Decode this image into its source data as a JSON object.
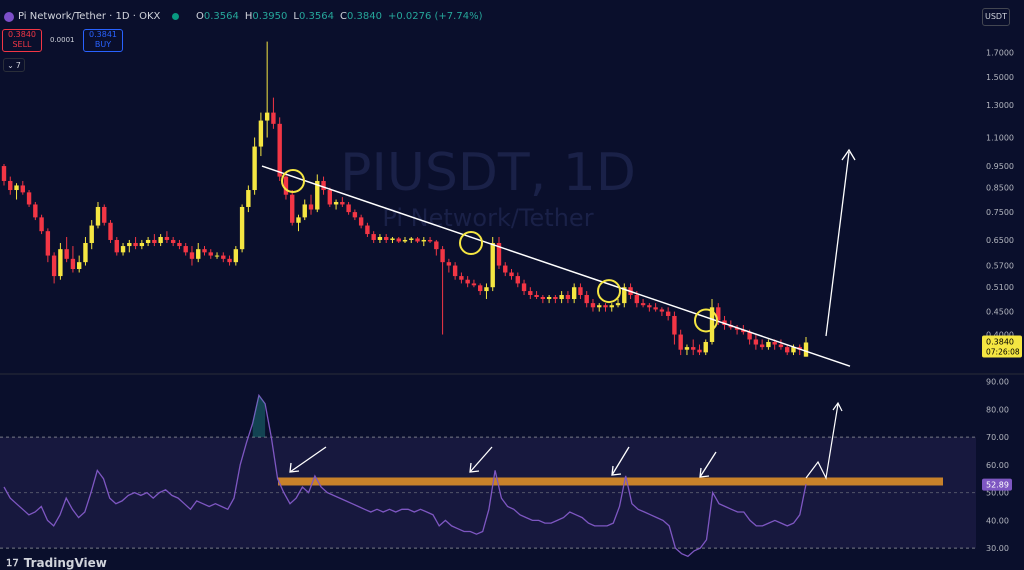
{
  "header": {
    "symbol_title": "Pi Network/Tether · 1D · OKX",
    "ohlc": [
      {
        "k": "O",
        "v": "0.3564"
      },
      {
        "k": "H",
        "v": "0.3950"
      },
      {
        "k": "L",
        "v": "0.3564"
      },
      {
        "k": "C",
        "v": "0.3840"
      },
      {
        "k": "",
        "v": "+0.0276 (+7.74%)"
      }
    ],
    "currency": "USDT"
  },
  "trade": {
    "sell_price": "0.3840",
    "sell_label": "SELL",
    "spread": "0.0001",
    "buy_price": "0.3841",
    "buy_label": "BUY"
  },
  "indicators_toggle": {
    "count": "7"
  },
  "branding": {
    "name": "TradingView"
  },
  "colors": {
    "background": "#0a0f2c",
    "up_candle": "#f5e642",
    "down_candle": "#f23645",
    "trendline": "#ffffff",
    "highlight_circle": "#f5e642",
    "rsi_line": "#7e57c2",
    "resistance_band": "#c8822a",
    "price_label_bg": "#f5e642"
  },
  "chart_data": [
    {
      "type": "candlestick",
      "watermark_symbol": "PIUSDT, 1D",
      "watermark_name": "Pi Network/Tether",
      "y_scale": "log",
      "ylim": [
        0.33,
        1.95
      ],
      "y_ticks": [
        "1.7000",
        "1.5000",
        "1.3000",
        "1.1000",
        "0.9500",
        "0.8500",
        "0.7500",
        "0.6500",
        "0.5700",
        "0.5100",
        "0.4500",
        "0.4000"
      ],
      "last_price": "0.3840",
      "countdown": "07:26:08",
      "candles_ohlc": [
        [
          0.95,
          0.96,
          0.86,
          0.88
        ],
        [
          0.88,
          0.9,
          0.82,
          0.84
        ],
        [
          0.84,
          0.87,
          0.8,
          0.86
        ],
        [
          0.86,
          0.88,
          0.82,
          0.83
        ],
        [
          0.83,
          0.84,
          0.77,
          0.78
        ],
        [
          0.78,
          0.79,
          0.72,
          0.73
        ],
        [
          0.73,
          0.74,
          0.67,
          0.68
        ],
        [
          0.68,
          0.69,
          0.58,
          0.6
        ],
        [
          0.6,
          0.61,
          0.52,
          0.54
        ],
        [
          0.54,
          0.64,
          0.53,
          0.62
        ],
        [
          0.62,
          0.66,
          0.58,
          0.59
        ],
        [
          0.59,
          0.63,
          0.55,
          0.56
        ],
        [
          0.56,
          0.6,
          0.55,
          0.58
        ],
        [
          0.58,
          0.66,
          0.57,
          0.64
        ],
        [
          0.64,
          0.72,
          0.62,
          0.7
        ],
        [
          0.7,
          0.79,
          0.69,
          0.77
        ],
        [
          0.77,
          0.78,
          0.7,
          0.71
        ],
        [
          0.71,
          0.72,
          0.64,
          0.65
        ],
        [
          0.65,
          0.66,
          0.6,
          0.61
        ],
        [
          0.61,
          0.64,
          0.6,
          0.63
        ],
        [
          0.63,
          0.65,
          0.61,
          0.64
        ],
        [
          0.64,
          0.66,
          0.62,
          0.63
        ],
        [
          0.63,
          0.65,
          0.62,
          0.64
        ],
        [
          0.64,
          0.66,
          0.63,
          0.65
        ],
        [
          0.65,
          0.67,
          0.63,
          0.64
        ],
        [
          0.64,
          0.67,
          0.63,
          0.66
        ],
        [
          0.66,
          0.68,
          0.64,
          0.65
        ],
        [
          0.65,
          0.66,
          0.63,
          0.64
        ],
        [
          0.64,
          0.65,
          0.62,
          0.63
        ],
        [
          0.63,
          0.64,
          0.6,
          0.61
        ],
        [
          0.61,
          0.63,
          0.57,
          0.59
        ],
        [
          0.59,
          0.64,
          0.58,
          0.62
        ],
        [
          0.62,
          0.63,
          0.6,
          0.61
        ],
        [
          0.61,
          0.62,
          0.59,
          0.6
        ],
        [
          0.6,
          0.61,
          0.59,
          0.6
        ],
        [
          0.6,
          0.61,
          0.58,
          0.59
        ],
        [
          0.59,
          0.6,
          0.57,
          0.58
        ],
        [
          0.58,
          0.63,
          0.57,
          0.62
        ],
        [
          0.62,
          0.78,
          0.61,
          0.77
        ],
        [
          0.77,
          0.86,
          0.75,
          0.84
        ],
        [
          0.84,
          1.1,
          0.82,
          1.05
        ],
        [
          1.05,
          1.25,
          1.0,
          1.2
        ],
        [
          1.2,
          1.8,
          1.1,
          1.25
        ],
        [
          1.25,
          1.35,
          1.15,
          1.18
        ],
        [
          1.18,
          1.22,
          0.88,
          0.9
        ],
        [
          0.9,
          0.92,
          0.8,
          0.82
        ],
        [
          0.82,
          0.84,
          0.7,
          0.71
        ],
        [
          0.71,
          0.74,
          0.68,
          0.73
        ],
        [
          0.73,
          0.8,
          0.72,
          0.78
        ],
        [
          0.78,
          0.82,
          0.74,
          0.76
        ],
        [
          0.76,
          0.91,
          0.75,
          0.88
        ],
        [
          0.88,
          0.9,
          0.82,
          0.84
        ],
        [
          0.84,
          0.85,
          0.77,
          0.78
        ],
        [
          0.78,
          0.8,
          0.76,
          0.79
        ],
        [
          0.79,
          0.81,
          0.77,
          0.78
        ],
        [
          0.78,
          0.79,
          0.74,
          0.75
        ],
        [
          0.75,
          0.76,
          0.72,
          0.73
        ],
        [
          0.73,
          0.74,
          0.69,
          0.7
        ],
        [
          0.7,
          0.71,
          0.66,
          0.67
        ],
        [
          0.67,
          0.68,
          0.64,
          0.65
        ],
        [
          0.65,
          0.67,
          0.64,
          0.66
        ],
        [
          0.66,
          0.67,
          0.64,
          0.65
        ],
        [
          0.65,
          0.66,
          0.64,
          0.655
        ],
        [
          0.655,
          0.66,
          0.64,
          0.645
        ],
        [
          0.645,
          0.66,
          0.64,
          0.65
        ],
        [
          0.65,
          0.66,
          0.64,
          0.655
        ],
        [
          0.655,
          0.66,
          0.64,
          0.645
        ],
        [
          0.645,
          0.66,
          0.63,
          0.65
        ],
        [
          0.65,
          0.66,
          0.64,
          0.645
        ],
        [
          0.645,
          0.65,
          0.6,
          0.62
        ],
        [
          0.62,
          0.63,
          0.4,
          0.58
        ],
        [
          0.58,
          0.59,
          0.55,
          0.57
        ],
        [
          0.57,
          0.58,
          0.53,
          0.54
        ],
        [
          0.54,
          0.55,
          0.52,
          0.53
        ],
        [
          0.53,
          0.54,
          0.51,
          0.52
        ],
        [
          0.52,
          0.53,
          0.51,
          0.515
        ],
        [
          0.515,
          0.52,
          0.49,
          0.5
        ],
        [
          0.5,
          0.52,
          0.48,
          0.51
        ],
        [
          0.51,
          0.66,
          0.5,
          0.64
        ],
        [
          0.64,
          0.66,
          0.56,
          0.57
        ],
        [
          0.57,
          0.58,
          0.54,
          0.55
        ],
        [
          0.55,
          0.56,
          0.53,
          0.54
        ],
        [
          0.54,
          0.55,
          0.51,
          0.52
        ],
        [
          0.52,
          0.53,
          0.49,
          0.5
        ],
        [
          0.5,
          0.51,
          0.48,
          0.49
        ],
        [
          0.49,
          0.5,
          0.48,
          0.485
        ],
        [
          0.485,
          0.49,
          0.47,
          0.48
        ],
        [
          0.48,
          0.49,
          0.47,
          0.485
        ],
        [
          0.485,
          0.49,
          0.47,
          0.48
        ],
        [
          0.48,
          0.5,
          0.47,
          0.49
        ],
        [
          0.49,
          0.5,
          0.47,
          0.48
        ],
        [
          0.48,
          0.52,
          0.47,
          0.51
        ],
        [
          0.51,
          0.52,
          0.48,
          0.49
        ],
        [
          0.49,
          0.5,
          0.46,
          0.47
        ],
        [
          0.47,
          0.48,
          0.45,
          0.46
        ],
        [
          0.46,
          0.47,
          0.45,
          0.465
        ],
        [
          0.465,
          0.47,
          0.45,
          0.46
        ],
        [
          0.46,
          0.47,
          0.45,
          0.465
        ],
        [
          0.465,
          0.48,
          0.46,
          0.47
        ],
        [
          0.47,
          0.52,
          0.46,
          0.51
        ],
        [
          0.51,
          0.52,
          0.48,
          0.49
        ],
        [
          0.49,
          0.5,
          0.46,
          0.47
        ],
        [
          0.47,
          0.48,
          0.46,
          0.465
        ],
        [
          0.465,
          0.47,
          0.45,
          0.46
        ],
        [
          0.46,
          0.47,
          0.45,
          0.455
        ],
        [
          0.455,
          0.46,
          0.44,
          0.45
        ],
        [
          0.45,
          0.46,
          0.43,
          0.44
        ],
        [
          0.44,
          0.45,
          0.38,
          0.4
        ],
        [
          0.4,
          0.41,
          0.36,
          0.37
        ],
        [
          0.37,
          0.38,
          0.36,
          0.375
        ],
        [
          0.375,
          0.39,
          0.36,
          0.37
        ],
        [
          0.37,
          0.38,
          0.36,
          0.365
        ],
        [
          0.365,
          0.39,
          0.36,
          0.385
        ],
        [
          0.385,
          0.48,
          0.38,
          0.46
        ],
        [
          0.46,
          0.47,
          0.42,
          0.43
        ],
        [
          0.43,
          0.44,
          0.41,
          0.42
        ],
        [
          0.42,
          0.43,
          0.41,
          0.415
        ],
        [
          0.415,
          0.42,
          0.4,
          0.41
        ],
        [
          0.41,
          0.42,
          0.4,
          0.405
        ],
        [
          0.405,
          0.41,
          0.38,
          0.39
        ],
        [
          0.39,
          0.4,
          0.37,
          0.38
        ],
        [
          0.38,
          0.39,
          0.37,
          0.375
        ],
        [
          0.375,
          0.39,
          0.37,
          0.385
        ],
        [
          0.385,
          0.39,
          0.37,
          0.38
        ],
        [
          0.38,
          0.39,
          0.37,
          0.375
        ],
        [
          0.375,
          0.38,
          0.36,
          0.365
        ],
        [
          0.365,
          0.38,
          0.36,
          0.375
        ],
        [
          0.375,
          0.38,
          0.36,
          0.37
        ],
        [
          0.357,
          0.395,
          0.357,
          0.384
        ]
      ],
      "trendline": [
        [
          0.95,
          0.34
        ]
      ],
      "highlighted_touches": [
        0.88,
        0.64,
        0.5,
        0.43
      ],
      "projection_arrow": "up"
    },
    {
      "type": "line",
      "series": [
        {
          "values": [
            52,
            48,
            46,
            44,
            42,
            43,
            45,
            40,
            38,
            42,
            48,
            44,
            41,
            43,
            50,
            58,
            55,
            48,
            46,
            47,
            49,
            50,
            49,
            50,
            48,
            50,
            51,
            49,
            48,
            46,
            44,
            47,
            46,
            45,
            46,
            45,
            44,
            48,
            60,
            68,
            75,
            85,
            82,
            70,
            55,
            50,
            46,
            48,
            52,
            50,
            56,
            52,
            50,
            49,
            48,
            47,
            46,
            45,
            44,
            43,
            44,
            43,
            44,
            43,
            44,
            44,
            43,
            44,
            43,
            42,
            38,
            40,
            38,
            37,
            36,
            36,
            35,
            36,
            44,
            58,
            48,
            45,
            44,
            42,
            41,
            40,
            40,
            39,
            39,
            40,
            41,
            43,
            42,
            41,
            39,
            38,
            38,
            38,
            39,
            45,
            56,
            46,
            44,
            43,
            42,
            41,
            40,
            38,
            30,
            28,
            27,
            29,
            30,
            33,
            50,
            46,
            45,
            44,
            43,
            43,
            40,
            38,
            38,
            39,
            40,
            39,
            38,
            39,
            42,
            53
          ]
        }
      ],
      "ylim": [
        25,
        92
      ],
      "y_ticks": [
        "90.00",
        "80.00",
        "70.00",
        "60.00",
        "50.00",
        "40.00",
        "30.00"
      ],
      "bands": [
        70,
        30
      ],
      "midline": 50,
      "resistance_band_value": 54,
      "last_value": "52.89",
      "projection_arrow": "up"
    }
  ]
}
